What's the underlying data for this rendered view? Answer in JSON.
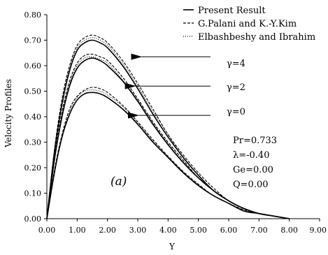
{
  "chart_data": {
    "type": "line",
    "title": "",
    "xlabel": "Y",
    "ylabel": "Velocity Profiles",
    "xlim": [
      0,
      9
    ],
    "ylim": [
      0,
      0.8
    ],
    "xticks": [
      "0.00",
      "1.00",
      "2.00",
      "3.00",
      "4.00",
      "5.00",
      "6.00",
      "7.00",
      "8.00",
      "9.00"
    ],
    "yticks": [
      "0.00",
      "0.10",
      "0.20",
      "0.30",
      "0.40",
      "0.50",
      "0.60",
      "0.70",
      "0.80"
    ],
    "grid": false,
    "legend_position": "top-right",
    "legend": [
      {
        "label": "Present Result",
        "style": "solid"
      },
      {
        "label": "G.Palani and K.-Y.Kim",
        "style": "dashed"
      },
      {
        "label": "Elbashbeshy and Ibrahim",
        "style": "dotted"
      }
    ],
    "groups": [
      {
        "label": "γ=4",
        "x": [
          0,
          0.25,
          0.5,
          0.75,
          1.0,
          1.25,
          1.5,
          1.75,
          2.0,
          2.5,
          3.0,
          3.5,
          4.0,
          4.5,
          5.0,
          5.5,
          6.0,
          6.5,
          7.0,
          7.5,
          8.0
        ],
        "series": [
          {
            "style": "solid",
            "values": [
              0,
              0.26,
              0.45,
              0.58,
              0.66,
              0.69,
              0.7,
              0.69,
              0.67,
              0.6,
              0.51,
              0.41,
              0.32,
              0.24,
              0.17,
              0.11,
              0.07,
              0.04,
              0.02,
              0.01,
              0
            ]
          },
          {
            "style": "dashed",
            "values": [
              0,
              0.27,
              0.47,
              0.6,
              0.68,
              0.71,
              0.72,
              0.71,
              0.69,
              0.62,
              0.53,
              0.43,
              0.33,
              0.25,
              0.18,
              0.12,
              0.07,
              0.04,
              0.02,
              0.01,
              0
            ]
          },
          {
            "style": "dotted",
            "values": [
              0,
              0.26,
              0.46,
              0.59,
              0.67,
              0.7,
              0.71,
              0.7,
              0.68,
              0.61,
              0.52,
              0.42,
              0.33,
              0.24,
              0.17,
              0.11,
              0.07,
              0.04,
              0.02,
              0.01,
              0
            ]
          }
        ]
      },
      {
        "label": "γ=2",
        "x": [
          0,
          0.25,
          0.5,
          0.75,
          1.0,
          1.25,
          1.5,
          1.75,
          2.0,
          2.5,
          3.0,
          3.5,
          4.0,
          4.5,
          5.0,
          5.5,
          6.0,
          6.5,
          7.0,
          7.5,
          8.0
        ],
        "series": [
          {
            "style": "solid",
            "values": [
              0,
              0.23,
              0.4,
              0.52,
              0.59,
              0.62,
              0.63,
              0.62,
              0.6,
              0.54,
              0.46,
              0.37,
              0.29,
              0.22,
              0.16,
              0.11,
              0.07,
              0.04,
              0.02,
              0.01,
              0
            ]
          },
          {
            "style": "dashed",
            "values": [
              0,
              0.24,
              0.42,
              0.54,
              0.61,
              0.64,
              0.645,
              0.635,
              0.62,
              0.555,
              0.47,
              0.38,
              0.3,
              0.23,
              0.16,
              0.11,
              0.07,
              0.04,
              0.02,
              0.01,
              0
            ]
          },
          {
            "style": "dotted",
            "values": [
              0,
              0.235,
              0.41,
              0.53,
              0.6,
              0.63,
              0.635,
              0.625,
              0.61,
              0.545,
              0.465,
              0.375,
              0.295,
              0.225,
              0.16,
              0.11,
              0.07,
              0.04,
              0.02,
              0.01,
              0
            ]
          }
        ]
      },
      {
        "label": "γ=0",
        "x": [
          0,
          0.25,
          0.5,
          0.75,
          1.0,
          1.25,
          1.5,
          1.75,
          2.0,
          2.5,
          3.0,
          3.5,
          4.0,
          4.5,
          5.0,
          5.5,
          6.0,
          6.5,
          7.0,
          7.5,
          8.0
        ],
        "series": [
          {
            "style": "solid",
            "values": [
              0,
              0.18,
              0.32,
              0.41,
              0.465,
              0.49,
              0.495,
              0.49,
              0.475,
              0.43,
              0.37,
              0.3,
              0.24,
              0.18,
              0.13,
              0.09,
              0.06,
              0.03,
              0.02,
              0.01,
              0
            ]
          },
          {
            "style": "dashed",
            "values": [
              0,
              0.19,
              0.33,
              0.43,
              0.48,
              0.505,
              0.515,
              0.51,
              0.495,
              0.445,
              0.38,
              0.31,
              0.245,
              0.185,
              0.135,
              0.09,
              0.06,
              0.035,
              0.02,
              0.01,
              0
            ]
          },
          {
            "style": "dotted",
            "values": [
              0,
              0.185,
              0.325,
              0.42,
              0.475,
              0.5,
              0.505,
              0.5,
              0.485,
              0.44,
              0.375,
              0.305,
              0.242,
              0.182,
              0.132,
              0.09,
              0.06,
              0.033,
              0.02,
              0.01,
              0
            ]
          }
        ]
      }
    ],
    "arrows": [
      {
        "label": "γ=4",
        "from_x": 5.4,
        "to_x": 2.8,
        "y": 0.635
      },
      {
        "label": "γ=2",
        "from_x": 5.4,
        "to_x": 2.6,
        "y": 0.52
      },
      {
        "label": "γ=0",
        "from_x": 5.4,
        "to_x": 2.7,
        "y": 0.405
      }
    ],
    "annotations": {
      "pr": "Pr=0.733",
      "lambda": "λ=-0.40",
      "ge": "Ge=0.00",
      "q": "Q=0.00",
      "panel": "(a)"
    }
  }
}
